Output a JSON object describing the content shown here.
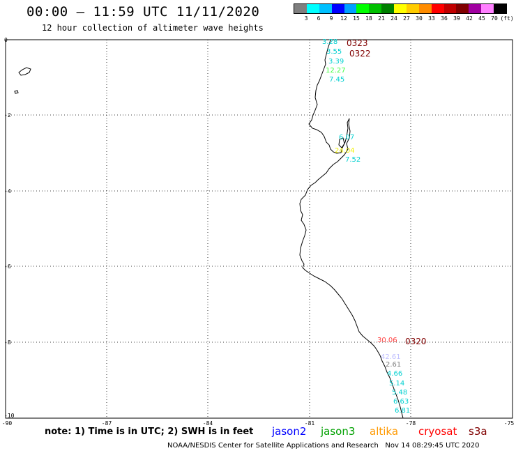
{
  "header": {
    "title": "00:00 – 11:59 UTC 11/11/2020",
    "subtitle": "12 hour collection of altimeter wave heights"
  },
  "color_scale": {
    "colors": [
      "#7f7f7f",
      "#00ffff",
      "#00c0ff",
      "#0000ff",
      "#00a0ff",
      "#00ff00",
      "#00c000",
      "#008000",
      "#ffff00",
      "#ffcc00",
      "#ff8c00",
      "#ff0000",
      "#c00000",
      "#800000",
      "#a000a0",
      "#ff80ff",
      "#000000"
    ],
    "labels": [
      "3",
      "6",
      "9",
      "12",
      "15",
      "18",
      "21",
      "24",
      "27",
      "30",
      "33",
      "36",
      "39",
      "42",
      "45",
      "70",
      "(ft)"
    ]
  },
  "axes": {
    "y_labels": [
      "0",
      "-2",
      "-4",
      "-6",
      "-8",
      "-10"
    ],
    "x_labels": [
      "-90",
      "-87",
      "-84",
      "-81",
      "-78",
      "-75"
    ]
  },
  "observations": [
    {
      "text": "3.28",
      "color": "#00d0d0"
    },
    {
      "text": "3.55",
      "color": "#00d0d0"
    },
    {
      "text": "3.39",
      "color": "#00d0d0"
    },
    {
      "text": "12.27",
      "color": "#40ff40"
    },
    {
      "text": "7.45",
      "color": "#00d0d0"
    },
    {
      "text": "6.07",
      "color": "#00d0d0"
    },
    {
      "text": "24.04",
      "color": "#f0f000"
    },
    {
      "text": "7.52",
      "color": "#00d0d0"
    },
    {
      "text": "30.06",
      "color": "#ff4040"
    },
    {
      "text": "42.61",
      "color": "#c0c0ff"
    },
    {
      "text": "2.61",
      "color": "#808080"
    },
    {
      "text": "4.66",
      "color": "#00d0d0"
    },
    {
      "text": "5.14",
      "color": "#00d0d0"
    },
    {
      "text": "5.48",
      "color": "#00d0d0"
    },
    {
      "text": "6.63",
      "color": "#00d0d0"
    },
    {
      "text": "6.81",
      "color": "#00d0d0"
    }
  ],
  "time_labels": [
    {
      "text": "0323",
      "color": "#800000"
    },
    {
      "text": "0322",
      "color": "#800000"
    },
    {
      "text": "0320",
      "color": "#800000"
    }
  ],
  "footer": {
    "note": "note: 1) Time is in UTC; 2) SWH is in feet",
    "credit": "NOAA/NESDIS Center for Satellite Applications and Research   Nov 14 08:29:45 UTC 2020"
  },
  "legend": [
    {
      "name": "jason2",
      "color": "#0000ff"
    },
    {
      "name": "jason3",
      "color": "#00a000"
    },
    {
      "name": "altika",
      "color": "#ff9900"
    },
    {
      "name": "cryosat",
      "color": "#ff0000"
    },
    {
      "name": "s3a",
      "color": "#800000"
    }
  ]
}
